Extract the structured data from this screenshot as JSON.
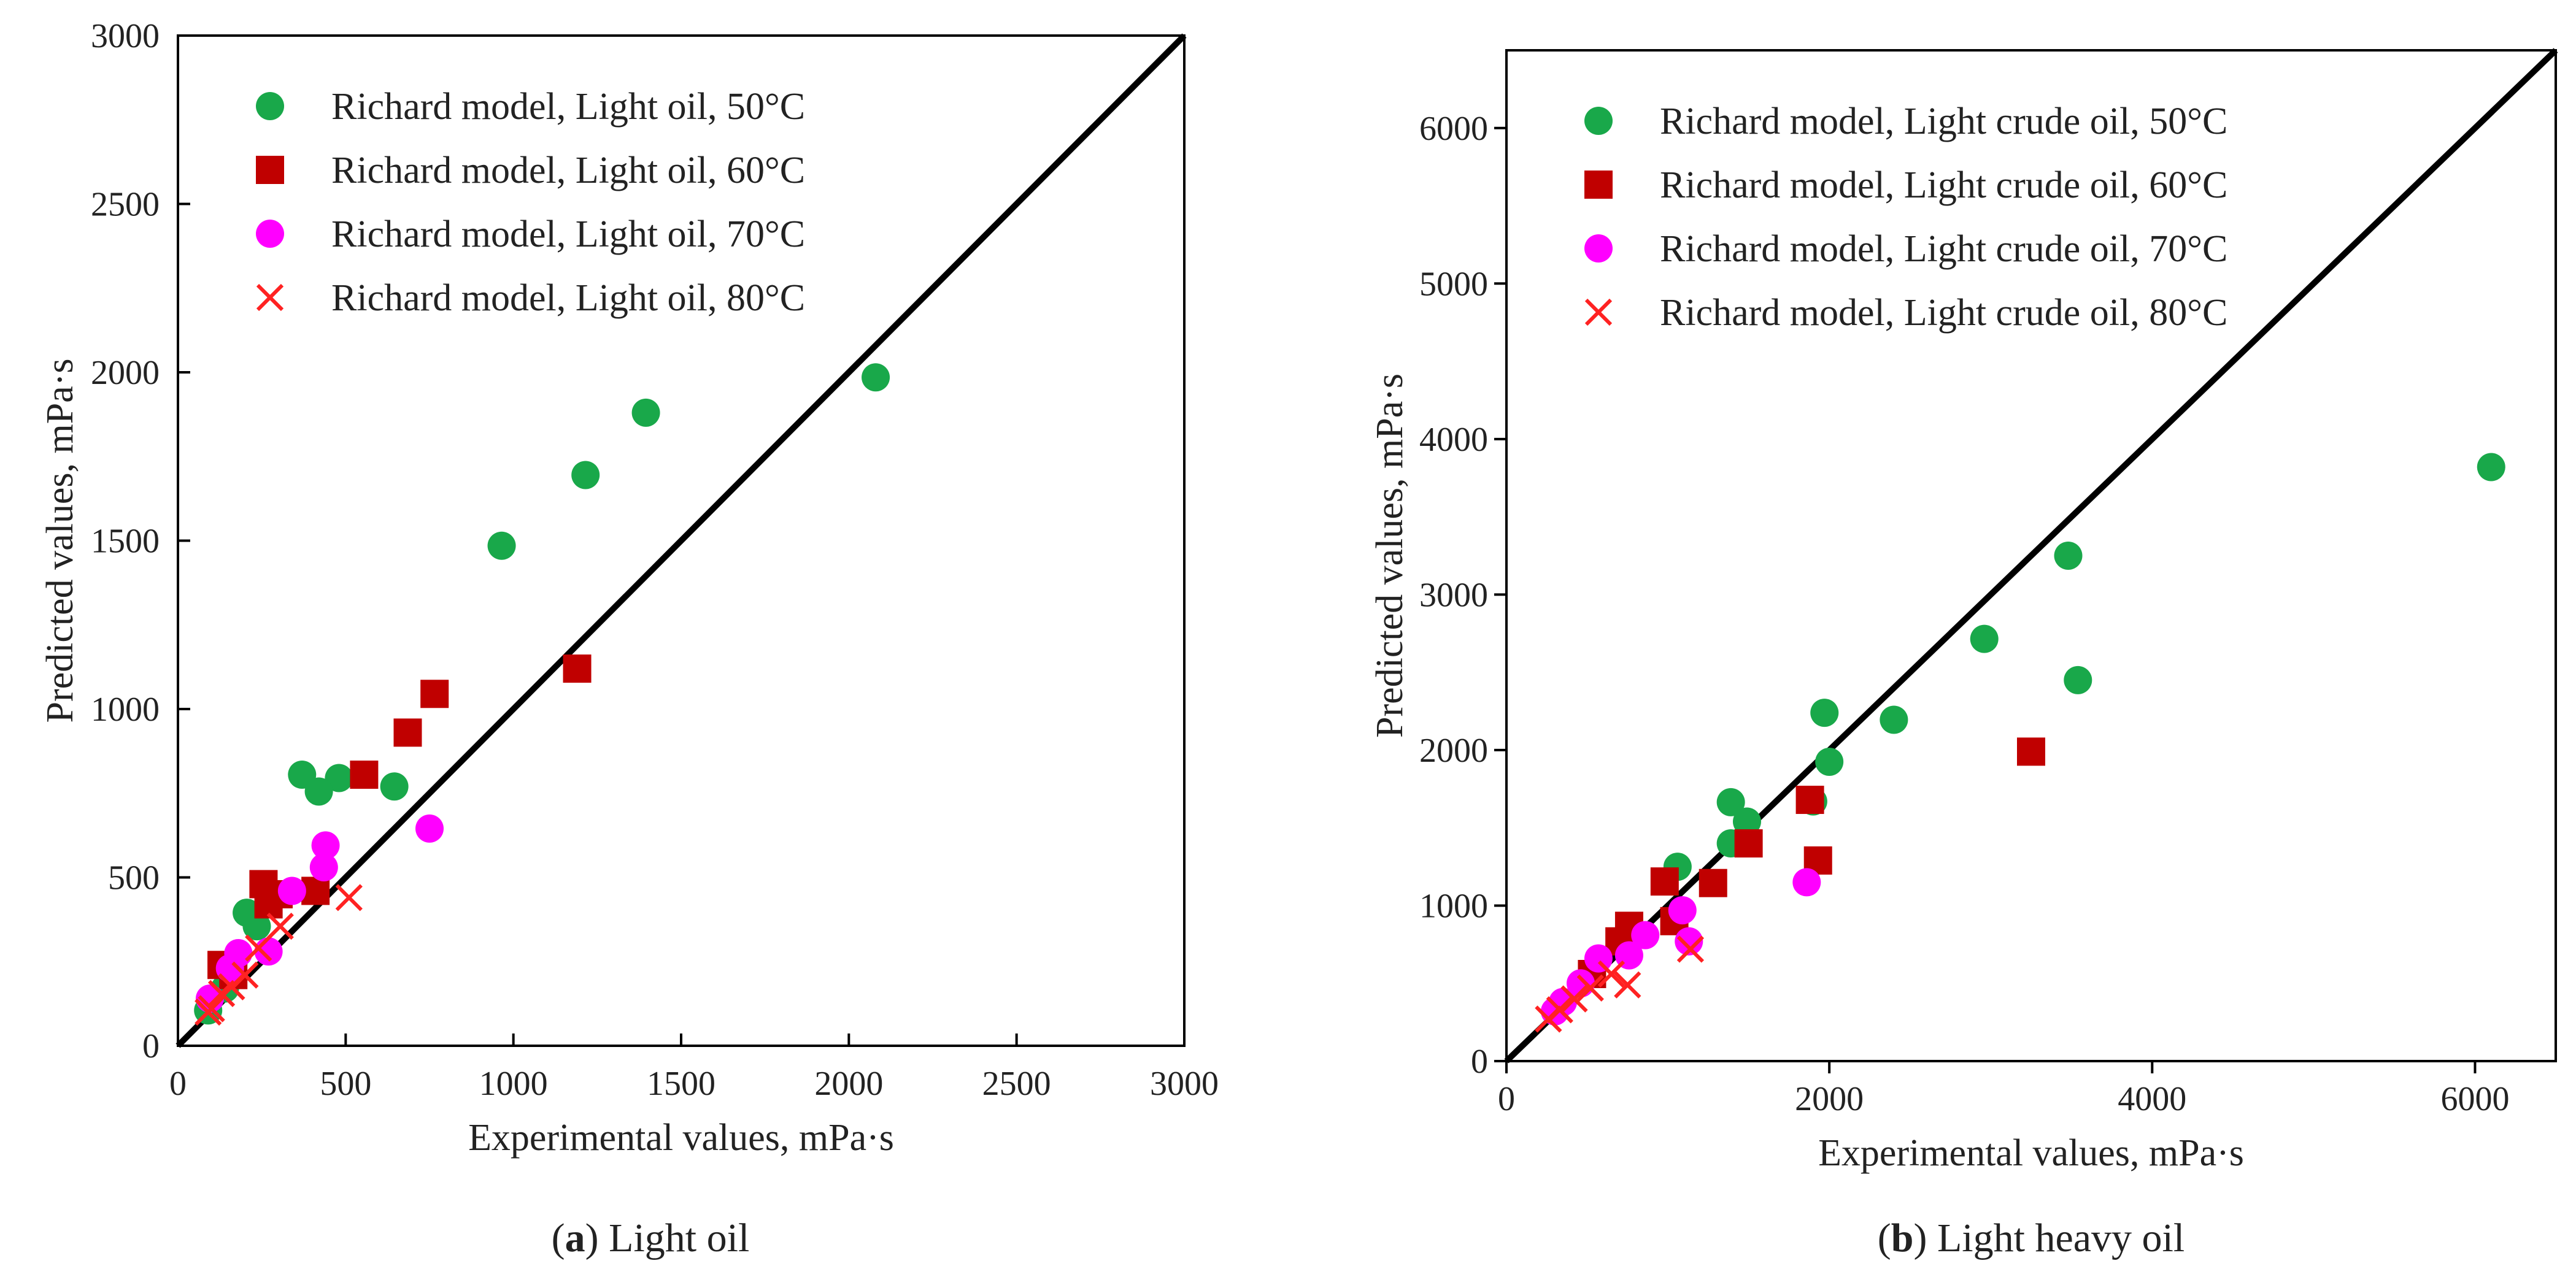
{
  "chart_data": [
    {
      "id": "a",
      "type": "scatter",
      "xlabel": "Experimental values, mPa·s",
      "ylabel": "Predicted values, mPa·s",
      "xlim": [
        0,
        3000
      ],
      "ylim": [
        0,
        3000
      ],
      "xticks": [
        0,
        500,
        1000,
        1500,
        2000,
        2500,
        3000
      ],
      "yticks": [
        0,
        500,
        1000,
        1500,
        2000,
        2500,
        3000
      ],
      "legend_position": "top-left",
      "caption": {
        "label": "a",
        "text": "Light oil"
      },
      "reference_line": "y = x",
      "series": [
        {
          "name": "Richard model, Light oil, 50°C",
          "marker": "circle",
          "color": "#19a84a",
          "points": [
            [
              2080,
              1985
            ],
            [
              1395,
              1880
            ],
            [
              1215,
              1695
            ],
            [
              965,
              1485
            ],
            [
              370,
              805
            ],
            [
              480,
              795
            ],
            [
              420,
              755
            ],
            [
              645,
              770
            ],
            [
              205,
              395
            ],
            [
              235,
              355
            ],
            [
              140,
              170
            ],
            [
              90,
              105
            ]
          ]
        },
        {
          "name": "Richard model, Light oil, 60°C",
          "marker": "square",
          "color": "#c00000",
          "points": [
            [
              1190,
              1120
            ],
            [
              765,
              1045
            ],
            [
              685,
              930
            ],
            [
              555,
              805
            ],
            [
              255,
              480
            ],
            [
              300,
              450
            ],
            [
              410,
              460
            ],
            [
              270,
              420
            ],
            [
              130,
              240
            ],
            [
              165,
              210
            ]
          ]
        },
        {
          "name": "Richard model, Light oil, 70°C",
          "marker": "circle",
          "color": "#ff00ff",
          "points": [
            [
              750,
              645
            ],
            [
              440,
              595
            ],
            [
              435,
              530
            ],
            [
              340,
              460
            ],
            [
              270,
              280
            ],
            [
              180,
              275
            ],
            [
              155,
              230
            ],
            [
              95,
              140
            ]
          ]
        },
        {
          "name": "Richard model, Light oil, 80°C",
          "marker": "x",
          "color": "#ff2222",
          "points": [
            [
              510,
              440
            ],
            [
              305,
              355
            ],
            [
              240,
              290
            ],
            [
              200,
              210
            ],
            [
              160,
              175
            ],
            [
              130,
              155
            ],
            [
              100,
              110
            ],
            [
              90,
              100
            ]
          ]
        }
      ]
    },
    {
      "id": "b",
      "type": "scatter",
      "xlabel": "Experimental values, mPa·s",
      "ylabel": "Predicted values, mPa·s",
      "xlim": [
        0,
        6500
      ],
      "ylim": [
        0,
        6500
      ],
      "xticks": [
        0,
        2000,
        4000,
        6000
      ],
      "yticks": [
        0,
        1000,
        2000,
        3000,
        4000,
        5000,
        6000
      ],
      "legend_position": "top-left",
      "caption": {
        "label": "b",
        "text": "Light heavy oil"
      },
      "reference_line": "y = x",
      "series": [
        {
          "name": "Richard model, Light crude oil, 50°C",
          "marker": "circle",
          "color": "#19a84a",
          "points": [
            [
              6100,
              3820
            ],
            [
              3480,
              3250
            ],
            [
              3540,
              2450
            ],
            [
              2960,
              2715
            ],
            [
              2400,
              2195
            ],
            [
              1970,
              2240
            ],
            [
              2000,
              1925
            ],
            [
              1900,
              1670
            ],
            [
              1390,
              1665
            ],
            [
              1490,
              1540
            ],
            [
              1390,
              1400
            ],
            [
              1060,
              1250
            ]
          ]
        },
        {
          "name": "Richard model, Light crude oil, 60°C",
          "marker": "square",
          "color": "#c00000",
          "points": [
            [
              3250,
              1990
            ],
            [
              1880,
              1680
            ],
            [
              1930,
              1290
            ],
            [
              1500,
              1400
            ],
            [
              1280,
              1145
            ],
            [
              980,
              1155
            ],
            [
              1040,
              900
            ],
            [
              760,
              870
            ],
            [
              700,
              770
            ],
            [
              530,
              560
            ]
          ]
        },
        {
          "name": "Richard model, Light crude oil, 70°C",
          "marker": "circle",
          "color": "#ff00ff",
          "points": [
            [
              1860,
              1150
            ],
            [
              1090,
              970
            ],
            [
              1130,
              770
            ],
            [
              860,
              810
            ],
            [
              760,
              680
            ],
            [
              570,
              660
            ],
            [
              460,
              500
            ],
            [
              350,
              380
            ],
            [
              300,
              320
            ]
          ]
        },
        {
          "name": "Richard model, Light crude oil, 80°C",
          "marker": "x",
          "color": "#ff2222",
          "points": [
            [
              1140,
              720
            ],
            [
              750,
              490
            ],
            [
              650,
              560
            ],
            [
              520,
              470
            ],
            [
              420,
              400
            ],
            [
              330,
              330
            ],
            [
              260,
              270
            ]
          ]
        }
      ]
    }
  ]
}
